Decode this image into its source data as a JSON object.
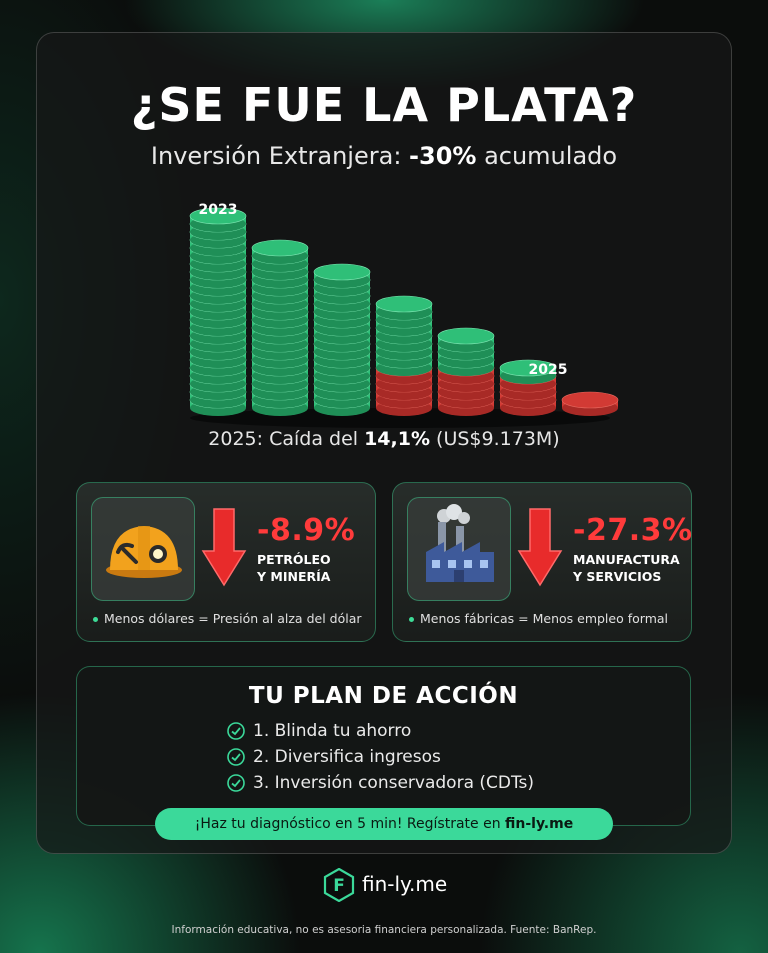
{
  "headline": "¿SE FUE LA PLATA?",
  "subhead": {
    "prefix": "Inversión Extranjera: ",
    "highlight": "-30%",
    "suffix": " acumulado"
  },
  "illustration": {
    "label_start": "2023",
    "label_end": "2025",
    "stack_levels": [
      1.0,
      0.84,
      0.68,
      0.52,
      0.35,
      0.2,
      0.06
    ],
    "colors": {
      "green": "#2fbf78",
      "red": "#d23a34"
    }
  },
  "drop_line": {
    "prefix": "2025: Caída del ",
    "highlight": "14,1%",
    "suffix": " (US$9.173M)"
  },
  "cards": [
    {
      "icon": "mining-helmet-icon",
      "percent": "-8.9%",
      "sector_line1": "PETRÓLEO",
      "sector_line2": "Y MINERÍA",
      "note": "Menos dólares = Presión al alza del dólar"
    },
    {
      "icon": "factory-icon",
      "percent": "-27.3%",
      "sector_line1": "MANUFACTURA",
      "sector_line2": "Y SERVICIOS",
      "note": "Menos fábricas = Menos empleo formal"
    }
  ],
  "plan": {
    "title": "TU PLAN DE ACCIÓN",
    "items": [
      "1. Blinda tu ahorro",
      "2. Diversifica ingresos",
      "3. Inversión conservadora (CDTs)"
    ]
  },
  "cta": {
    "prefix": "¡Haz tu diagnóstico en 5 min! Regístrate en ",
    "link": "fin-ly.me"
  },
  "brand": {
    "name": "fin-ly.me",
    "logo_letter": "F"
  },
  "footer": "Información educativa, no es asesoria financiera personalizada. Fuente: BanRep.",
  "colors": {
    "accent": "#3bd99a",
    "danger": "#ff3b3b"
  }
}
